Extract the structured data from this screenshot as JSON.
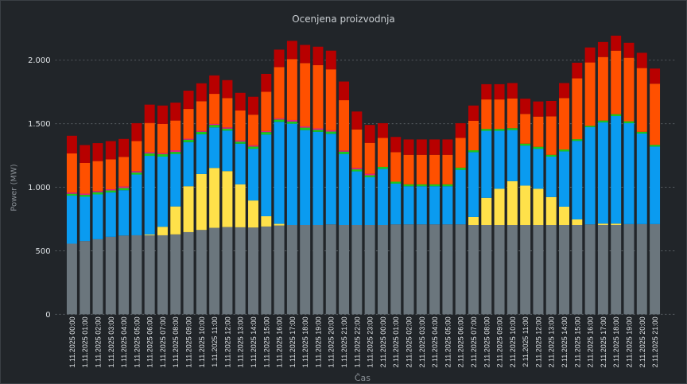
{
  "chart_data": {
    "type": "bar",
    "stacked": true,
    "title": "Ocenjena proizvodnja",
    "xlabel": "Čas",
    "ylabel": "Power (MW)",
    "ylim": [
      0,
      2250
    ],
    "yticks": [
      0,
      500,
      1000,
      1500,
      2000
    ],
    "ytick_labels": [
      "0",
      "500",
      "1.000",
      "1.500",
      "2.000"
    ],
    "grid": true,
    "legend": "none",
    "categories": [
      "1.11.2025 00:00",
      "1.11.2025 01:00",
      "1.11.2025 02:00",
      "1.11.2025 03:00",
      "1.11.2025 04:00",
      "1.11.2025 05:00",
      "1.11.2025 06:00",
      "1.11.2025 07:00",
      "1.11.2025 08:00",
      "1.11.2025 09:00",
      "1.11.2025 10:00",
      "1.11.2025 11:00",
      "1.11.2025 12:00",
      "1.11.2025 13:00",
      "1.11.2025 14:00",
      "1.11.2025 15:00",
      "1.11.2025 16:00",
      "1.11.2025 17:00",
      "1.11.2025 18:00",
      "1.11.2025 19:00",
      "1.11.2025 20:00",
      "1.11.2025 21:00",
      "1.11.2025 22:00",
      "1.11.2025 23:00",
      "2.11.2025 00:00",
      "2.11.2025 01:00",
      "2.11.2025 02:00",
      "2.11.2025 03:00",
      "2.11.2025 04:00",
      "2.11.2025 05:00",
      "2.11.2025 06:00",
      "2.11.2025 07:00",
      "2.11.2025 08:00",
      "2.11.2025 09:00",
      "2.11.2025 10:00",
      "2.11.2025 11:00",
      "2.11.2025 12:00",
      "2.11.2025 13:00",
      "2.11.2025 14:00",
      "2.11.2025 15:00",
      "2.11.2025 16:00",
      "2.11.2025 17:00",
      "2.11.2025 18:00",
      "2.11.2025 19:00",
      "2.11.2025 20:00",
      "2.11.2025 21:00"
    ],
    "series": [
      {
        "color": "#6b767d",
        "values": [
          556,
          577,
          591,
          610,
          620,
          622,
          622,
          622,
          629,
          647,
          664,
          681,
          687,
          685,
          683,
          691,
          699,
          703,
          703,
          703,
          708,
          703,
          703,
          703,
          703,
          708,
          708,
          708,
          708,
          708,
          708,
          703,
          703,
          703,
          703,
          703,
          703,
          703,
          703,
          703,
          708,
          703,
          703,
          710,
          710,
          710
        ]
      },
      {
        "color": "#ffe14a",
        "values": [
          0,
          0,
          0,
          0,
          0,
          0,
          7,
          67,
          220,
          361,
          440,
          471,
          440,
          338,
          213,
          81,
          13,
          0,
          0,
          0,
          0,
          0,
          0,
          0,
          0,
          0,
          0,
          0,
          0,
          0,
          0,
          63,
          214,
          285,
          345,
          310,
          285,
          220,
          144,
          44,
          0,
          11,
          11,
          0,
          0,
          0
        ]
      },
      {
        "color": "#0a9bf0",
        "values": [
          378,
          348,
          353,
          349,
          357,
          478,
          618,
          552,
          413,
          347,
          313,
          319,
          319,
          320,
          407,
          643,
          803,
          797,
          747,
          733,
          713,
          559,
          422,
          376,
          442,
          321,
          300,
          300,
          300,
          300,
          429,
          510,
          527,
          456,
          402,
          315,
          315,
          318,
          435,
          618,
          765,
          797,
          846,
          794,
          713,
          610
        ]
      },
      {
        "color": "#1ec81e",
        "values": [
          15,
          15,
          17,
          16,
          17,
          16,
          19,
          19,
          16,
          19,
          19,
          19,
          15,
          16,
          17,
          19,
          18,
          17,
          19,
          16,
          17,
          18,
          16,
          15,
          15,
          15,
          15,
          15,
          15,
          15,
          17,
          15,
          15,
          15,
          15,
          15,
          15,
          14,
          15,
          13,
          11,
          14,
          15,
          15,
          13,
          14
        ]
      },
      {
        "color": "#e0208a",
        "values": [
          10,
          10,
          10,
          9,
          12,
          11,
          10,
          8,
          13,
          8,
          8,
          8,
          10,
          10,
          10,
          8,
          9,
          12,
          10,
          11,
          10,
          9,
          11,
          12,
          0,
          0,
          0,
          0,
          0,
          0,
          0,
          0,
          0,
          0,
          0,
          0,
          0,
          0,
          0,
          0,
          0,
          0,
          0,
          0,
          0,
          0
        ]
      },
      {
        "color": "#ff5000",
        "values": [
          307,
          241,
          235,
          236,
          233,
          236,
          230,
          230,
          234,
          234,
          233,
          237,
          231,
          235,
          241,
          309,
          404,
          480,
          498,
          498,
          480,
          396,
          303,
          243,
          228,
          232,
          232,
          232,
          232,
          232,
          234,
          232,
          232,
          232,
          234,
          234,
          238,
          303,
          405,
          479,
          498,
          500,
          500,
          500,
          502,
          481
        ]
      },
      {
        "color": "#b80000",
        "values": [
          139,
          141,
          141,
          143,
          141,
          141,
          144,
          145,
          141,
          144,
          141,
          145,
          141,
          139,
          141,
          141,
          137,
          143,
          143,
          145,
          147,
          147,
          141,
          141,
          116,
          120,
          121,
          121,
          121,
          121,
          116,
          120,
          120,
          120,
          121,
          120,
          119,
          121,
          118,
          123,
          118,
          118,
          118,
          118,
          120,
          119
        ]
      }
    ]
  }
}
